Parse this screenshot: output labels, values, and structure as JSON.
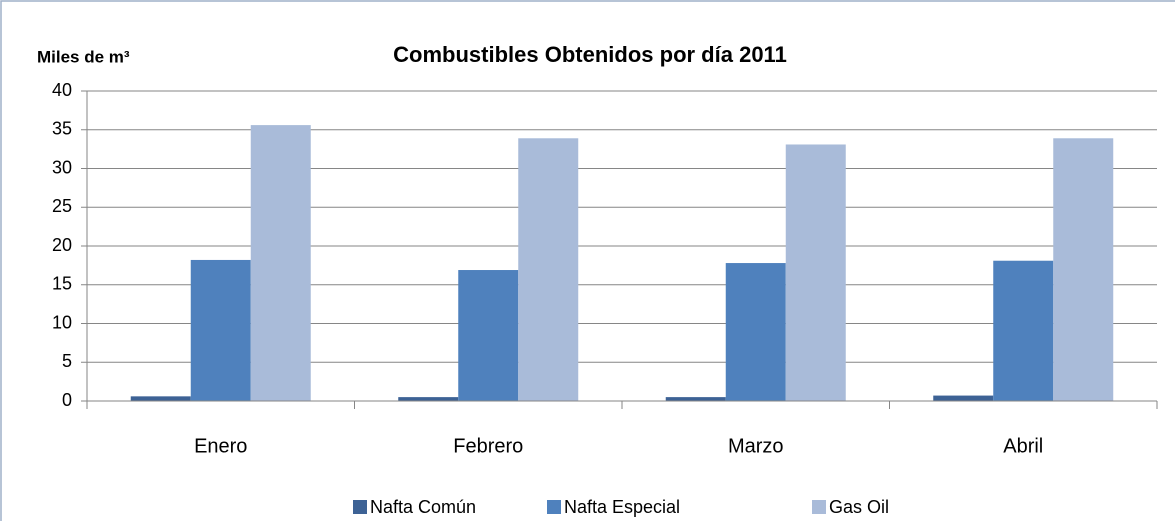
{
  "chart_data": {
    "type": "bar",
    "title": "Combustibles Obtenidos por día 2011",
    "y_label": "Miles de m³",
    "categories": [
      "Enero",
      "Febrero",
      "Marzo",
      "Abril"
    ],
    "series": [
      {
        "name": "Nafta Común",
        "color": "#3d6295",
        "values": [
          0.6,
          0.5,
          0.5,
          0.7
        ]
      },
      {
        "name": "Nafta Especial",
        "color": "#4f81bd",
        "values": [
          18.2,
          16.9,
          17.8,
          18.1
        ]
      },
      {
        "name": "Gas Oil",
        "color": "#a9bbd9",
        "values": [
          35.6,
          33.9,
          33.1,
          33.9
        ]
      }
    ],
    "ylim": [
      0,
      40
    ],
    "yticks": [
      0,
      5,
      10,
      15,
      20,
      25,
      30,
      35,
      40
    ],
    "grid": true,
    "legend": "bottom"
  }
}
